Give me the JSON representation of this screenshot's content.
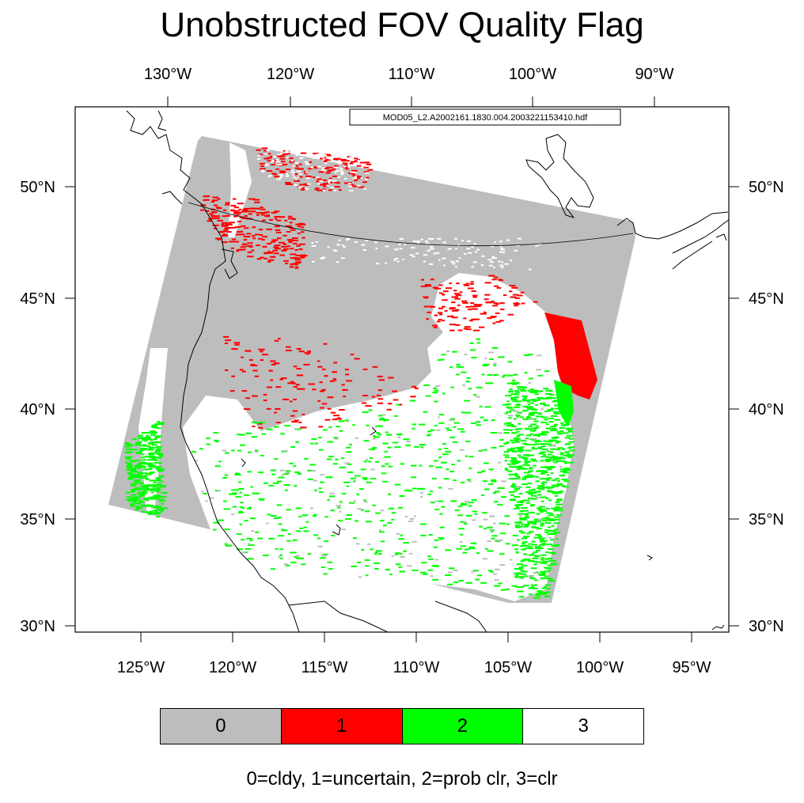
{
  "title": "Unobstructed FOV Quality Flag",
  "file_label": "MOD05_L2.A2002161.1830.004.2003221153410.hdf",
  "top_ticks": [
    "130°W",
    "120°W",
    "110°W",
    "100°W",
    "90°W"
  ],
  "bottom_ticks": [
    "125°W",
    "120°W",
    "115°W",
    "110°W",
    "105°W",
    "100°W",
    "95°W"
  ],
  "left_ticks": [
    "50°N",
    "45°N",
    "40°N",
    "35°N",
    "30°N"
  ],
  "right_ticks": [
    "50°N",
    "45°N",
    "40°N",
    "35°N",
    "30°N"
  ],
  "legend": [
    {
      "label": "0",
      "color": "#bdbdbd"
    },
    {
      "label": "1",
      "color": "#ff0000"
    },
    {
      "label": "2",
      "color": "#00ff00"
    },
    {
      "label": "3",
      "color": "#ffffff"
    }
  ],
  "caption": "0=cldy, 1=uncertain, 2=prob clr, 3=clr"
}
